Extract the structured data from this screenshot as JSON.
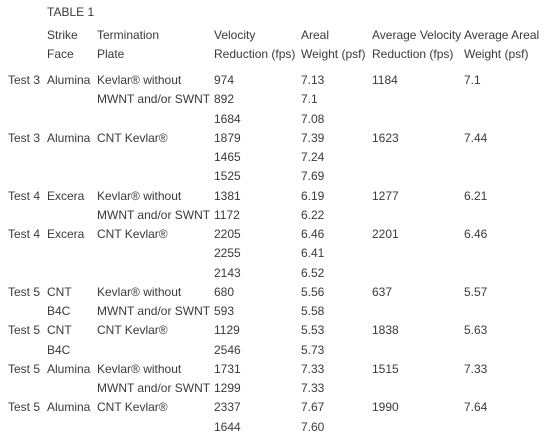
{
  "table": {
    "title": "TABLE 1",
    "headers": {
      "strike_face": [
        "Strike",
        "Face"
      ],
      "termination_plate": [
        "Termination",
        "Plate"
      ],
      "velocity_reduction": [
        "Velocity",
        "Reduction (fps)"
      ],
      "areal_weight": [
        "Areal",
        "Weight (psf)"
      ],
      "average_velocity_reduction": [
        "Average Velocity",
        "Reduction (fps)"
      ],
      "average_areal_weight": [
        "Average Areal",
        "Weight (psf)"
      ]
    },
    "rows": [
      {
        "test": "Test 3",
        "strike_face": "Alumina",
        "termination_plate": "Kevlar® without",
        "velocity": "974",
        "weight": "7.13",
        "avg_velocity": "1184",
        "avg_weight": "7.1"
      },
      {
        "test": "",
        "strike_face": "",
        "termination_plate": "MWNT and/or SWNT",
        "velocity": "892",
        "weight": "7.1",
        "avg_velocity": "",
        "avg_weight": ""
      },
      {
        "test": "",
        "strike_face": "",
        "termination_plate": "",
        "velocity": "1684",
        "weight": "7.08",
        "avg_velocity": "",
        "avg_weight": ""
      },
      {
        "test": "Test 3",
        "strike_face": "Alumina",
        "termination_plate": "CNT Kevlar®",
        "velocity": "1879",
        "weight": "7.39",
        "avg_velocity": "1623",
        "avg_weight": "7.44"
      },
      {
        "test": "",
        "strike_face": "",
        "termination_plate": "",
        "velocity": "1465",
        "weight": "7.24",
        "avg_velocity": "",
        "avg_weight": ""
      },
      {
        "test": "",
        "strike_face": "",
        "termination_plate": "",
        "velocity": "1525",
        "weight": "7.69",
        "avg_velocity": "",
        "avg_weight": ""
      },
      {
        "test": "Test 4",
        "strike_face": "Excera",
        "termination_plate": "Kevlar® without",
        "velocity": "1381",
        "weight": "6.19",
        "avg_velocity": "1277",
        "avg_weight": "6.21"
      },
      {
        "test": "",
        "strike_face": "",
        "termination_plate": "MWNT and/or SWNT",
        "velocity": "1172",
        "weight": "6.22",
        "avg_velocity": "",
        "avg_weight": ""
      },
      {
        "test": "Test 4",
        "strike_face": "Excera",
        "termination_plate": "CNT Kevlar®",
        "velocity": "2205",
        "weight": "6.46",
        "avg_velocity": "2201",
        "avg_weight": "6.46"
      },
      {
        "test": "",
        "strike_face": "",
        "termination_plate": "",
        "velocity": "2255",
        "weight": "6.41",
        "avg_velocity": "",
        "avg_weight": ""
      },
      {
        "test": "",
        "strike_face": "",
        "termination_plate": "",
        "velocity": "2143",
        "weight": "6.52",
        "avg_velocity": "",
        "avg_weight": ""
      },
      {
        "test": "Test 5",
        "strike_face": "CNT",
        "termination_plate": "Kevlar® without",
        "velocity": "680",
        "weight": "5.56",
        "avg_velocity": "637",
        "avg_weight": "5.57"
      },
      {
        "test": "",
        "strike_face": "B4C",
        "termination_plate": "MWNT and/or SWNT",
        "velocity": "593",
        "weight": "5.58",
        "avg_velocity": "",
        "avg_weight": ""
      },
      {
        "test": "Test 5",
        "strike_face": "CNT",
        "termination_plate": "CNT Kevlar®",
        "velocity": "1129",
        "weight": "5.53",
        "avg_velocity": "1838",
        "avg_weight": "5.63"
      },
      {
        "test": "",
        "strike_face": "B4C",
        "termination_plate": "",
        "velocity": "2546",
        "weight": "5.73",
        "avg_velocity": "",
        "avg_weight": ""
      },
      {
        "test": "Test 5",
        "strike_face": "Alumina",
        "termination_plate": "Kevlar® without",
        "velocity": "1731",
        "weight": "7.33",
        "avg_velocity": "1515",
        "avg_weight": "7.33"
      },
      {
        "test": "",
        "strike_face": "",
        "termination_plate": "MWNT and/or SWNT",
        "velocity": "1299",
        "weight": "7.33",
        "avg_velocity": "",
        "avg_weight": ""
      },
      {
        "test": "Test 5",
        "strike_face": "Alumina",
        "termination_plate": "CNT Kevlar®",
        "velocity": "2337",
        "weight": "7.67",
        "avg_velocity": "1990",
        "avg_weight": "7.64"
      },
      {
        "test": "",
        "strike_face": "",
        "termination_plate": "",
        "velocity": "1644",
        "weight": "7.60",
        "avg_velocity": "",
        "avg_weight": ""
      }
    ]
  }
}
